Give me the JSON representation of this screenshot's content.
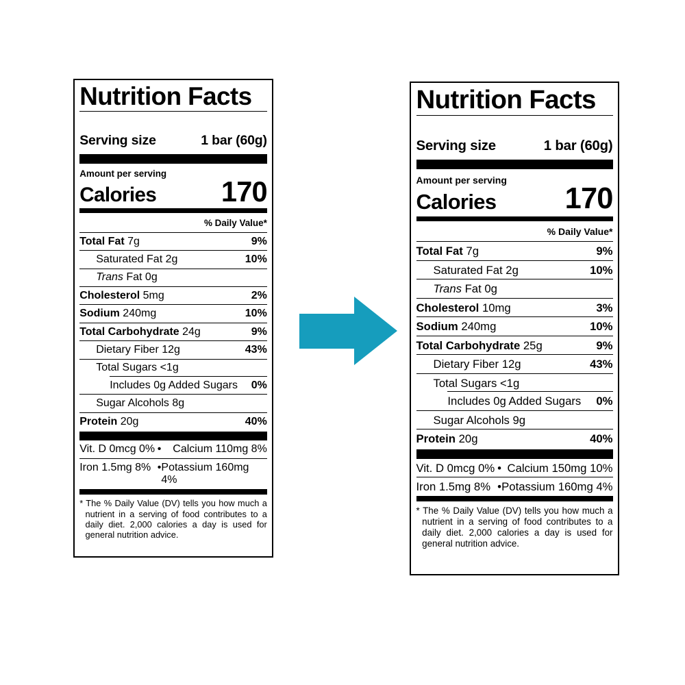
{
  "arrow": {
    "color": "#169dbd",
    "direction": "right"
  },
  "labels": [
    {
      "title": "Nutrition Facts",
      "serving_size_label": "Serving size",
      "serving_size_value": "1 bar (60g)",
      "amount_per_serving": "Amount per serving",
      "calories_label": "Calories",
      "calories_value": "170",
      "daily_value_header": "% Daily Value*",
      "bullet": "•",
      "rows": [
        {
          "bold": "Total Fat",
          "rest": "7g",
          "dv": "9%",
          "indent": 0
        },
        {
          "rest": "Saturated Fat 2g",
          "dv": "10%",
          "indent": 1
        },
        {
          "italic": "Trans",
          "rest": "Fat 0g",
          "dv": "",
          "indent": 1
        },
        {
          "bold": "Cholesterol",
          "rest": "5mg",
          "dv": "2%",
          "indent": 0
        },
        {
          "bold": "Sodium",
          "rest": "240mg",
          "dv": "10%",
          "indent": 0
        },
        {
          "bold": "Total Carbohydrate",
          "rest": "24g",
          "dv": "9%",
          "indent": 0
        },
        {
          "rest": "Dietary Fiber 12g",
          "dv": "43%",
          "indent": 1
        },
        {
          "rest": "Total Sugars <1g",
          "dv": "",
          "indent": 1,
          "inset": true
        },
        {
          "rest": "Includes 0g Added Sugars",
          "dv": "0%",
          "indent": 2
        },
        {
          "rest": "Sugar Alcohols 8g",
          "dv": "",
          "indent": 1
        },
        {
          "bold": "Protein",
          "rest": "20g",
          "dv": "40%",
          "indent": 0,
          "last": true
        }
      ],
      "micronutrients": [
        {
          "left": "Vit. D 0mcg 0%",
          "right": "Calcium 110mg 8%"
        },
        {
          "left": "Iron 1.5mg 8%",
          "right": "Potassium 160mg 4%"
        }
      ],
      "footnote": "* The % Daily Value (DV) tells you how much a nutrient in a serving of food contributes to a daily diet. 2,000 calories a day is used for general nutrition advice."
    },
    {
      "title": "Nutrition Facts",
      "serving_size_label": "Serving size",
      "serving_size_value": "1 bar (60g)",
      "amount_per_serving": "Amount per serving",
      "calories_label": "Calories",
      "calories_value": "170",
      "daily_value_header": "% Daily Value*",
      "bullet": "•",
      "rows": [
        {
          "bold": "Total Fat",
          "rest": "7g",
          "dv": "9%",
          "indent": 0
        },
        {
          "rest": "Saturated Fat 2g",
          "dv": "10%",
          "indent": 1
        },
        {
          "italic": "Trans",
          "rest": "Fat 0g",
          "dv": "",
          "indent": 1
        },
        {
          "bold": "Cholesterol",
          "rest": "10mg",
          "dv": "3%",
          "indent": 0
        },
        {
          "bold": "Sodium",
          "rest": "240mg",
          "dv": "10%",
          "indent": 0
        },
        {
          "bold": "Total Carbohydrate",
          "rest": "25g",
          "dv": "9%",
          "indent": 0
        },
        {
          "rest": "Dietary Fiber 12g",
          "dv": "43%",
          "indent": 1
        },
        {
          "rest": "Total Sugars <1g",
          "dv": "",
          "indent": 1,
          "inset": true
        },
        {
          "rest": "Includes 0g Added Sugars",
          "dv": "0%",
          "indent": 2
        },
        {
          "rest": "Sugar Alcohols 9g",
          "dv": "",
          "indent": 1
        },
        {
          "bold": "Protein",
          "rest": "20g",
          "dv": "40%",
          "indent": 0,
          "last": true
        }
      ],
      "micronutrients": [
        {
          "left": "Vit. D 0mcg 0%",
          "right": "Calcium 150mg 10%"
        },
        {
          "left": "Iron 1.5mg 8%",
          "right": "Potassium 160mg 4%"
        }
      ],
      "footnote": "* The % Daily Value (DV) tells you how much a nutrient in a serving of food contributes to a daily diet. 2,000 calories a day is used for general nutrition advice."
    }
  ]
}
